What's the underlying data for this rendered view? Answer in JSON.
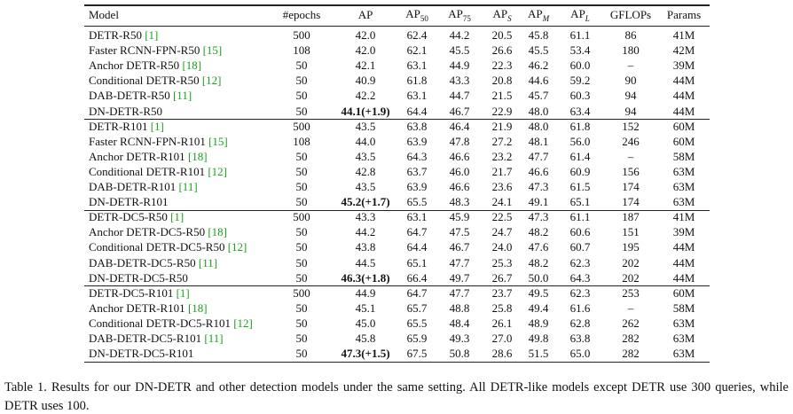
{
  "table": {
    "header": [
      {
        "text": "Model"
      },
      {
        "text": "#epochs"
      },
      {
        "text": "AP"
      },
      {
        "text": "AP",
        "sub": "50"
      },
      {
        "text": "AP",
        "sub": "75"
      },
      {
        "text": "AP",
        "sub": "S"
      },
      {
        "text": "AP",
        "sub": "M"
      },
      {
        "text": "AP",
        "sub": "L"
      },
      {
        "text": "GFLOPs"
      },
      {
        "text": "Params"
      }
    ],
    "groups": [
      [
        {
          "model": "DETR-R50",
          "ref": "[1]",
          "cells": [
            "500",
            "42.0",
            "62.4",
            "44.2",
            "20.5",
            "45.8",
            "61.1",
            "86",
            "41M"
          ]
        },
        {
          "model": "Faster RCNN-FPN-R50",
          "ref": "[15]",
          "cells": [
            "108",
            "42.0",
            "62.1",
            "45.5",
            "26.6",
            "45.5",
            "53.4",
            "180",
            "42M"
          ]
        },
        {
          "model": "Anchor DETR-R50",
          "ref": "[18]",
          "cells": [
            "50",
            "42.1",
            "63.1",
            "44.9",
            "22.3",
            "46.2",
            "60.0",
            "–",
            "39M"
          ]
        },
        {
          "model": "Conditional DETR-R50",
          "ref": "[12]",
          "cells": [
            "50",
            "40.9",
            "61.8",
            "43.3",
            "20.8",
            "44.6",
            "59.2",
            "90",
            "44M"
          ]
        },
        {
          "model": "DAB-DETR-R50",
          "ref": "[11]",
          "cells": [
            "50",
            "42.2",
            "63.1",
            "44.7",
            "21.5",
            "45.7",
            "60.3",
            "94",
            "44M"
          ]
        },
        {
          "model": "DN-DETR-R50",
          "best": true,
          "cells": [
            "50",
            "44.1(+1.9)",
            "64.4",
            "46.7",
            "22.9",
            "48.0",
            "63.4",
            "94",
            "44M"
          ]
        }
      ],
      [
        {
          "model": "DETR-R101",
          "ref": "[1]",
          "cells": [
            "500",
            "43.5",
            "63.8",
            "46.4",
            "21.9",
            "48.0",
            "61.8",
            "152",
            "60M"
          ]
        },
        {
          "model": "Faster RCNN-FPN-R101",
          "ref": "[15]",
          "cells": [
            "108",
            "44.0",
            "63.9",
            "47.8",
            "27.2",
            "48.1",
            "56.0",
            "246",
            "60M"
          ]
        },
        {
          "model": "Anchor DETR-R101",
          "ref": "[18]",
          "cells": [
            "50",
            "43.5",
            "64.3",
            "46.6",
            "23.2",
            "47.7",
            "61.4",
            "–",
            "58M"
          ]
        },
        {
          "model": "Conditional DETR-R101",
          "ref": "[12]",
          "cells": [
            "50",
            "42.8",
            "63.7",
            "46.0",
            "21.7",
            "46.6",
            "60.9",
            "156",
            "63M"
          ]
        },
        {
          "model": "DAB-DETR-R101",
          "ref": "[11]",
          "cells": [
            "50",
            "43.5",
            "63.9",
            "46.6",
            "23.6",
            "47.3",
            "61.5",
            "174",
            "63M"
          ]
        },
        {
          "model": "DN-DETR-R101",
          "best": true,
          "cells": [
            "50",
            "45.2(+1.7)",
            "65.5",
            "48.3",
            "24.1",
            "49.1",
            "65.1",
            "174",
            "63M"
          ]
        }
      ],
      [
        {
          "model": "DETR-DC5-R50",
          "ref": "[1]",
          "cells": [
            "500",
            "43.3",
            "63.1",
            "45.9",
            "22.5",
            "47.3",
            "61.1",
            "187",
            "41M"
          ]
        },
        {
          "model": "Anchor DETR-DC5-R50",
          "ref": "[18]",
          "cells": [
            "50",
            "44.2",
            "64.7",
            "47.5",
            "24.7",
            "48.2",
            "60.6",
            "151",
            "39M"
          ]
        },
        {
          "model": "Conditional DETR-DC5-R50",
          "ref": "[12]",
          "cells": [
            "50",
            "43.8",
            "64.4",
            "46.7",
            "24.0",
            "47.6",
            "60.7",
            "195",
            "44M"
          ]
        },
        {
          "model": "DAB-DETR-DC5-R50",
          "ref": "[11]",
          "cells": [
            "50",
            "44.5",
            "65.1",
            "47.7",
            "25.3",
            "48.2",
            "62.3",
            "202",
            "44M"
          ]
        },
        {
          "model": "DN-DETR-DC5-R50",
          "best": true,
          "cells": [
            "50",
            "46.3(+1.8)",
            "66.4",
            "49.7",
            "26.7",
            "50.0",
            "64.3",
            "202",
            "44M"
          ]
        }
      ],
      [
        {
          "model": "DETR-DC5-R101",
          "ref": "[1]",
          "cells": [
            "500",
            "44.9",
            "64.7",
            "47.7",
            "23.7",
            "49.5",
            "62.3",
            "253",
            "60M"
          ]
        },
        {
          "model": "Anchor DETR-R101",
          "ref": "[18]",
          "cells": [
            "50",
            "45.1",
            "65.7",
            "48.8",
            "25.8",
            "49.4",
            "61.6",
            "–",
            "58M"
          ]
        },
        {
          "model": "Conditional DETR-DC5-R101",
          "ref": "[12]",
          "cells": [
            "50",
            "45.0",
            "65.5",
            "48.4",
            "26.1",
            "48.9",
            "62.8",
            "262",
            "63M"
          ]
        },
        {
          "model": "DAB-DETR-DC5-R101",
          "ref": "[11]",
          "cells": [
            "50",
            "45.8",
            "65.9",
            "49.3",
            "27.0",
            "49.8",
            "63.8",
            "282",
            "63M"
          ]
        },
        {
          "model": "DN-DETR-DC5-R101",
          "best": true,
          "cells": [
            "50",
            "47.3(+1.5)",
            "67.5",
            "50.8",
            "28.6",
            "51.5",
            "65.0",
            "282",
            "63M"
          ]
        }
      ]
    ]
  },
  "caption": {
    "label": "Table 1.",
    "text": "Results for our DN-DETR and other detection models under the same setting. All DETR-like models except DETR use 300 queries, while DETR uses 100."
  }
}
